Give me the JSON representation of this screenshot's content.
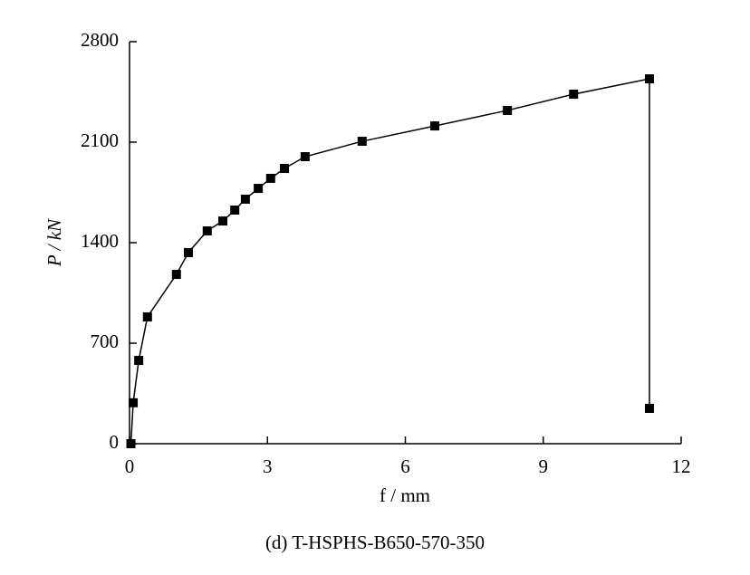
{
  "chart_data": {
    "type": "line",
    "xlabel": "f / mm",
    "ylabel": "P / kN",
    "caption": "(d) T-HSPHS-B650-570-350",
    "series": [
      {
        "color": "#000000",
        "marker": "square",
        "x": [
          0.03,
          0.08,
          0.2,
          0.39,
          1.02,
          1.28,
          1.69,
          2.03,
          2.29,
          2.52,
          2.8,
          3.07,
          3.37,
          3.82,
          5.06,
          6.64,
          8.22,
          9.66,
          11.31,
          11.31
        ],
        "values": [
          0,
          285,
          580,
          883,
          1179,
          1331,
          1482,
          1551,
          1627,
          1703,
          1778,
          1848,
          1917,
          1999,
          2106,
          2213,
          2321,
          2434,
          2541,
          246
        ]
      }
    ],
    "xlim": [
      0,
      12
    ],
    "xticks": [
      0,
      3,
      6,
      9,
      12
    ],
    "ylim": [
      0,
      2800
    ],
    "yticks": [
      0,
      700,
      1400,
      2100,
      2800
    ]
  }
}
